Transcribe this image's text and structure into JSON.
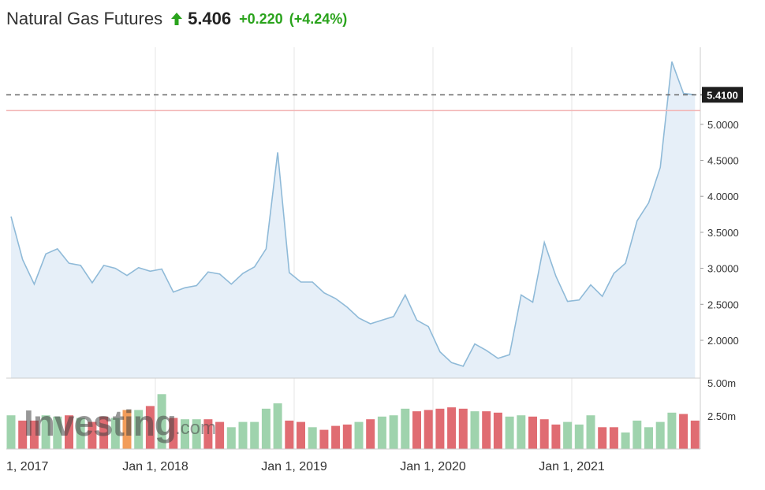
{
  "header": {
    "title": "Natural Gas Futures",
    "price": "5.406",
    "change": "+0.220",
    "change_pct": "(+4.24%)"
  },
  "watermark": "Investing",
  "watermark_suffix": ".com",
  "colors": {
    "line": "#8fbad8",
    "area": "#e6eff8",
    "up_change": "#2aa31c",
    "vol_up": "#9fd3ad",
    "vol_down": "#e06c72",
    "vol_orange": "#f29c5a",
    "ref_line": "#f3b5b5",
    "grid": "#e6e6e6"
  },
  "chart_data": [
    {
      "type": "area",
      "title": "",
      "xlabel": "",
      "ylabel": "",
      "x_ticks": [
        "1, 2017",
        "Jan 1, 2018",
        "Jan 1, 2019",
        "Jan 1, 2020",
        "Jan 1, 2021"
      ],
      "y_ticks": [
        "2.0000",
        "2.5000",
        "3.0000",
        "3.5000",
        "4.0000",
        "4.5000",
        "5.0000"
      ],
      "ylim": [
        1.5,
        6.0
      ],
      "current_value_label": "5.4100",
      "current_value": 5.41,
      "reference_level": 5.19,
      "grid": true,
      "x": [
        "2016-12",
        "2017-01",
        "2017-02",
        "2017-03",
        "2017-04",
        "2017-05",
        "2017-06",
        "2017-07",
        "2017-08",
        "2017-09",
        "2017-10",
        "2017-11",
        "2017-12",
        "2018-01",
        "2018-02",
        "2018-03",
        "2018-04",
        "2018-05",
        "2018-06",
        "2018-07",
        "2018-08",
        "2018-09",
        "2018-10",
        "2018-11",
        "2018-12",
        "2019-01",
        "2019-02",
        "2019-03",
        "2019-04",
        "2019-05",
        "2019-06",
        "2019-07",
        "2019-08",
        "2019-09",
        "2019-10",
        "2019-11",
        "2019-12",
        "2020-01",
        "2020-02",
        "2020-03",
        "2020-04",
        "2020-05",
        "2020-06",
        "2020-07",
        "2020-08",
        "2020-09",
        "2020-10",
        "2020-11",
        "2020-12",
        "2021-01",
        "2021-02",
        "2021-03",
        "2021-04",
        "2021-05",
        "2021-06",
        "2021-07",
        "2021-08",
        "2021-09",
        "2021-10",
        "2021-11"
      ],
      "values": [
        3.72,
        3.12,
        2.78,
        3.2,
        3.27,
        3.07,
        3.04,
        2.8,
        3.04,
        3.0,
        2.9,
        3.01,
        2.96,
        2.99,
        2.67,
        2.73,
        2.76,
        2.95,
        2.92,
        2.78,
        2.93,
        3.02,
        3.27,
        4.61,
        2.94,
        2.81,
        2.81,
        2.66,
        2.58,
        2.46,
        2.31,
        2.23,
        2.28,
        2.33,
        2.63,
        2.28,
        2.19,
        1.84,
        1.69,
        1.64,
        1.95,
        1.86,
        1.75,
        1.8,
        2.63,
        2.53,
        3.36,
        2.89,
        2.54,
        2.56,
        2.77,
        2.61,
        2.93,
        3.07,
        3.66,
        3.91,
        4.4,
        5.87,
        5.43,
        5.41
      ]
    },
    {
      "type": "bar",
      "title": "",
      "y_ticks": [
        "2.50m",
        "5.00m"
      ],
      "ylim": [
        0,
        5.6
      ],
      "values": [
        2.55,
        2.15,
        2.15,
        2.55,
        2.45,
        2.55,
        2.35,
        2.05,
        2.45,
        2.35,
        2.95,
        2.95,
        3.25,
        4.15,
        2.35,
        2.25,
        2.25,
        2.25,
        2.05,
        1.65,
        2.05,
        2.05,
        3.05,
        3.45,
        2.15,
        2.05,
        1.65,
        1.45,
        1.75,
        1.85,
        2.05,
        2.25,
        2.45,
        2.55,
        3.05,
        2.85,
        2.95,
        3.05,
        3.15,
        3.05,
        2.85,
        2.85,
        2.75,
        2.45,
        2.55,
        2.45,
        2.25,
        1.85,
        2.05,
        1.85,
        2.55,
        1.65,
        1.65,
        1.25,
        2.15,
        1.65,
        2.05,
        2.75,
        2.65,
        2.15
      ],
      "colors": [
        "up",
        "down",
        "down",
        "up",
        "up",
        "down",
        "up",
        "down",
        "down",
        "up",
        "orange",
        "up",
        "down",
        "up",
        "down",
        "up",
        "up",
        "down",
        "down",
        "up",
        "up",
        "up",
        "up",
        "up",
        "down",
        "down",
        "up",
        "down",
        "down",
        "down",
        "up",
        "down",
        "up",
        "up",
        "up",
        "down",
        "down",
        "down",
        "down",
        "down",
        "up",
        "down",
        "down",
        "up",
        "up",
        "down",
        "down",
        "down",
        "up",
        "up",
        "up",
        "down",
        "down",
        "up",
        "up",
        "up",
        "up",
        "up",
        "down",
        "down"
      ]
    }
  ]
}
